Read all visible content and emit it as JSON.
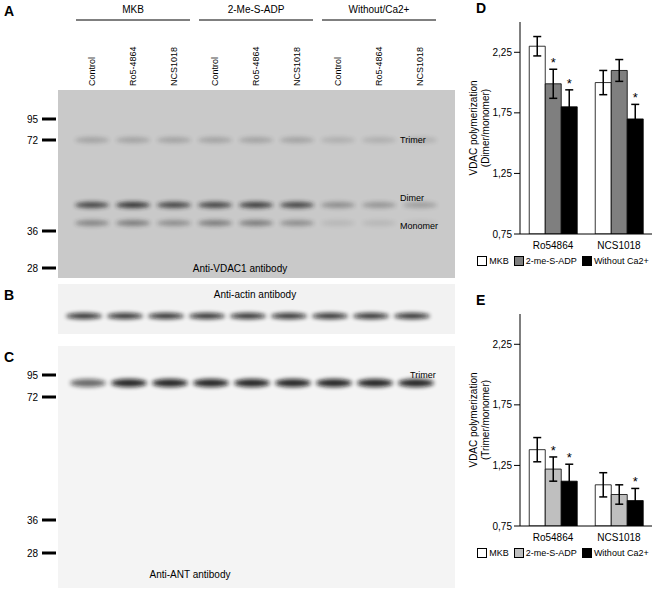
{
  "panels": {
    "A": {
      "letter": "A",
      "groups": [
        "MKB",
        "2-Me-S-ADP",
        "Without/Ca2+"
      ],
      "lanes": [
        "Control",
        "Ro5-4864",
        "NCS1018",
        "Control",
        "Ro5-4864",
        "NCS1018",
        "Control",
        "Ro5-4864",
        "NCS1018"
      ],
      "markers": [
        95,
        72,
        36,
        28
      ],
      "bands": [
        "Trimer",
        "Dimer",
        "Monomer"
      ],
      "antibody": "Anti-VDAC1 antibody"
    },
    "B": {
      "letter": "B",
      "antibody": "Anti-actin antibody"
    },
    "C": {
      "letter": "C",
      "markers": [
        95,
        72,
        36,
        28
      ],
      "bands": [
        "Trimer"
      ],
      "antibody": "Anti-ANT antibody"
    }
  },
  "chart_data": [
    {
      "panel": "D",
      "type": "bar",
      "y_label": "VDAC polymerization (Dimer/monomer)",
      "categories": [
        "Ro54864",
        "NCS1018"
      ],
      "series": [
        {
          "name": "MKB",
          "color": "#ffffff",
          "values": [
            2.3,
            2.0
          ],
          "errors": [
            0.08,
            0.1
          ],
          "significance": [
            null,
            null
          ]
        },
        {
          "name": "2-me-S-ADP",
          "color": "#7f7f7f",
          "values": [
            1.99,
            2.1
          ],
          "errors": [
            0.12,
            0.09
          ],
          "significance": [
            "*",
            null
          ]
        },
        {
          "name": "Without Ca2+",
          "color": "#000000",
          "values": [
            1.8,
            1.7
          ],
          "errors": [
            0.14,
            0.12
          ],
          "significance": [
            "*",
            "*"
          ]
        }
      ],
      "ylim": [
        0.75,
        2.5
      ],
      "yticks": [
        {
          "value": 0.75,
          "label": "0,75"
        },
        {
          "value": 1.25,
          "label": "1,25"
        },
        {
          "value": 1.75,
          "label": "1,75"
        },
        {
          "value": 2.25,
          "label": "2,25"
        }
      ],
      "legend": "bottom"
    },
    {
      "panel": "E",
      "type": "bar",
      "y_label": "VDAC polymerization (Trimer/monomer)",
      "categories": [
        "Ro54864",
        "NCS1018"
      ],
      "series": [
        {
          "name": "MKB",
          "color": "#ffffff",
          "values": [
            1.38,
            1.09
          ],
          "errors": [
            0.1,
            0.1
          ],
          "significance": [
            null,
            null
          ]
        },
        {
          "name": "2-me-S-ADP",
          "color": "#bfbfbf",
          "values": [
            1.22,
            1.01
          ],
          "errors": [
            0.1,
            0.08
          ],
          "significance": [
            "*",
            null
          ]
        },
        {
          "name": "Without Ca2+",
          "color": "#000000",
          "values": [
            1.12,
            0.96
          ],
          "errors": [
            0.14,
            0.1
          ],
          "significance": [
            "*",
            "*"
          ]
        }
      ],
      "ylim": [
        0.75,
        2.5
      ],
      "yticks": [
        {
          "value": 0.75,
          "label": "0,75"
        },
        {
          "value": 1.25,
          "label": "1,25"
        },
        {
          "value": 1.75,
          "label": "1,75"
        },
        {
          "value": 2.25,
          "label": "2,25"
        }
      ],
      "legend": "bottom"
    }
  ]
}
